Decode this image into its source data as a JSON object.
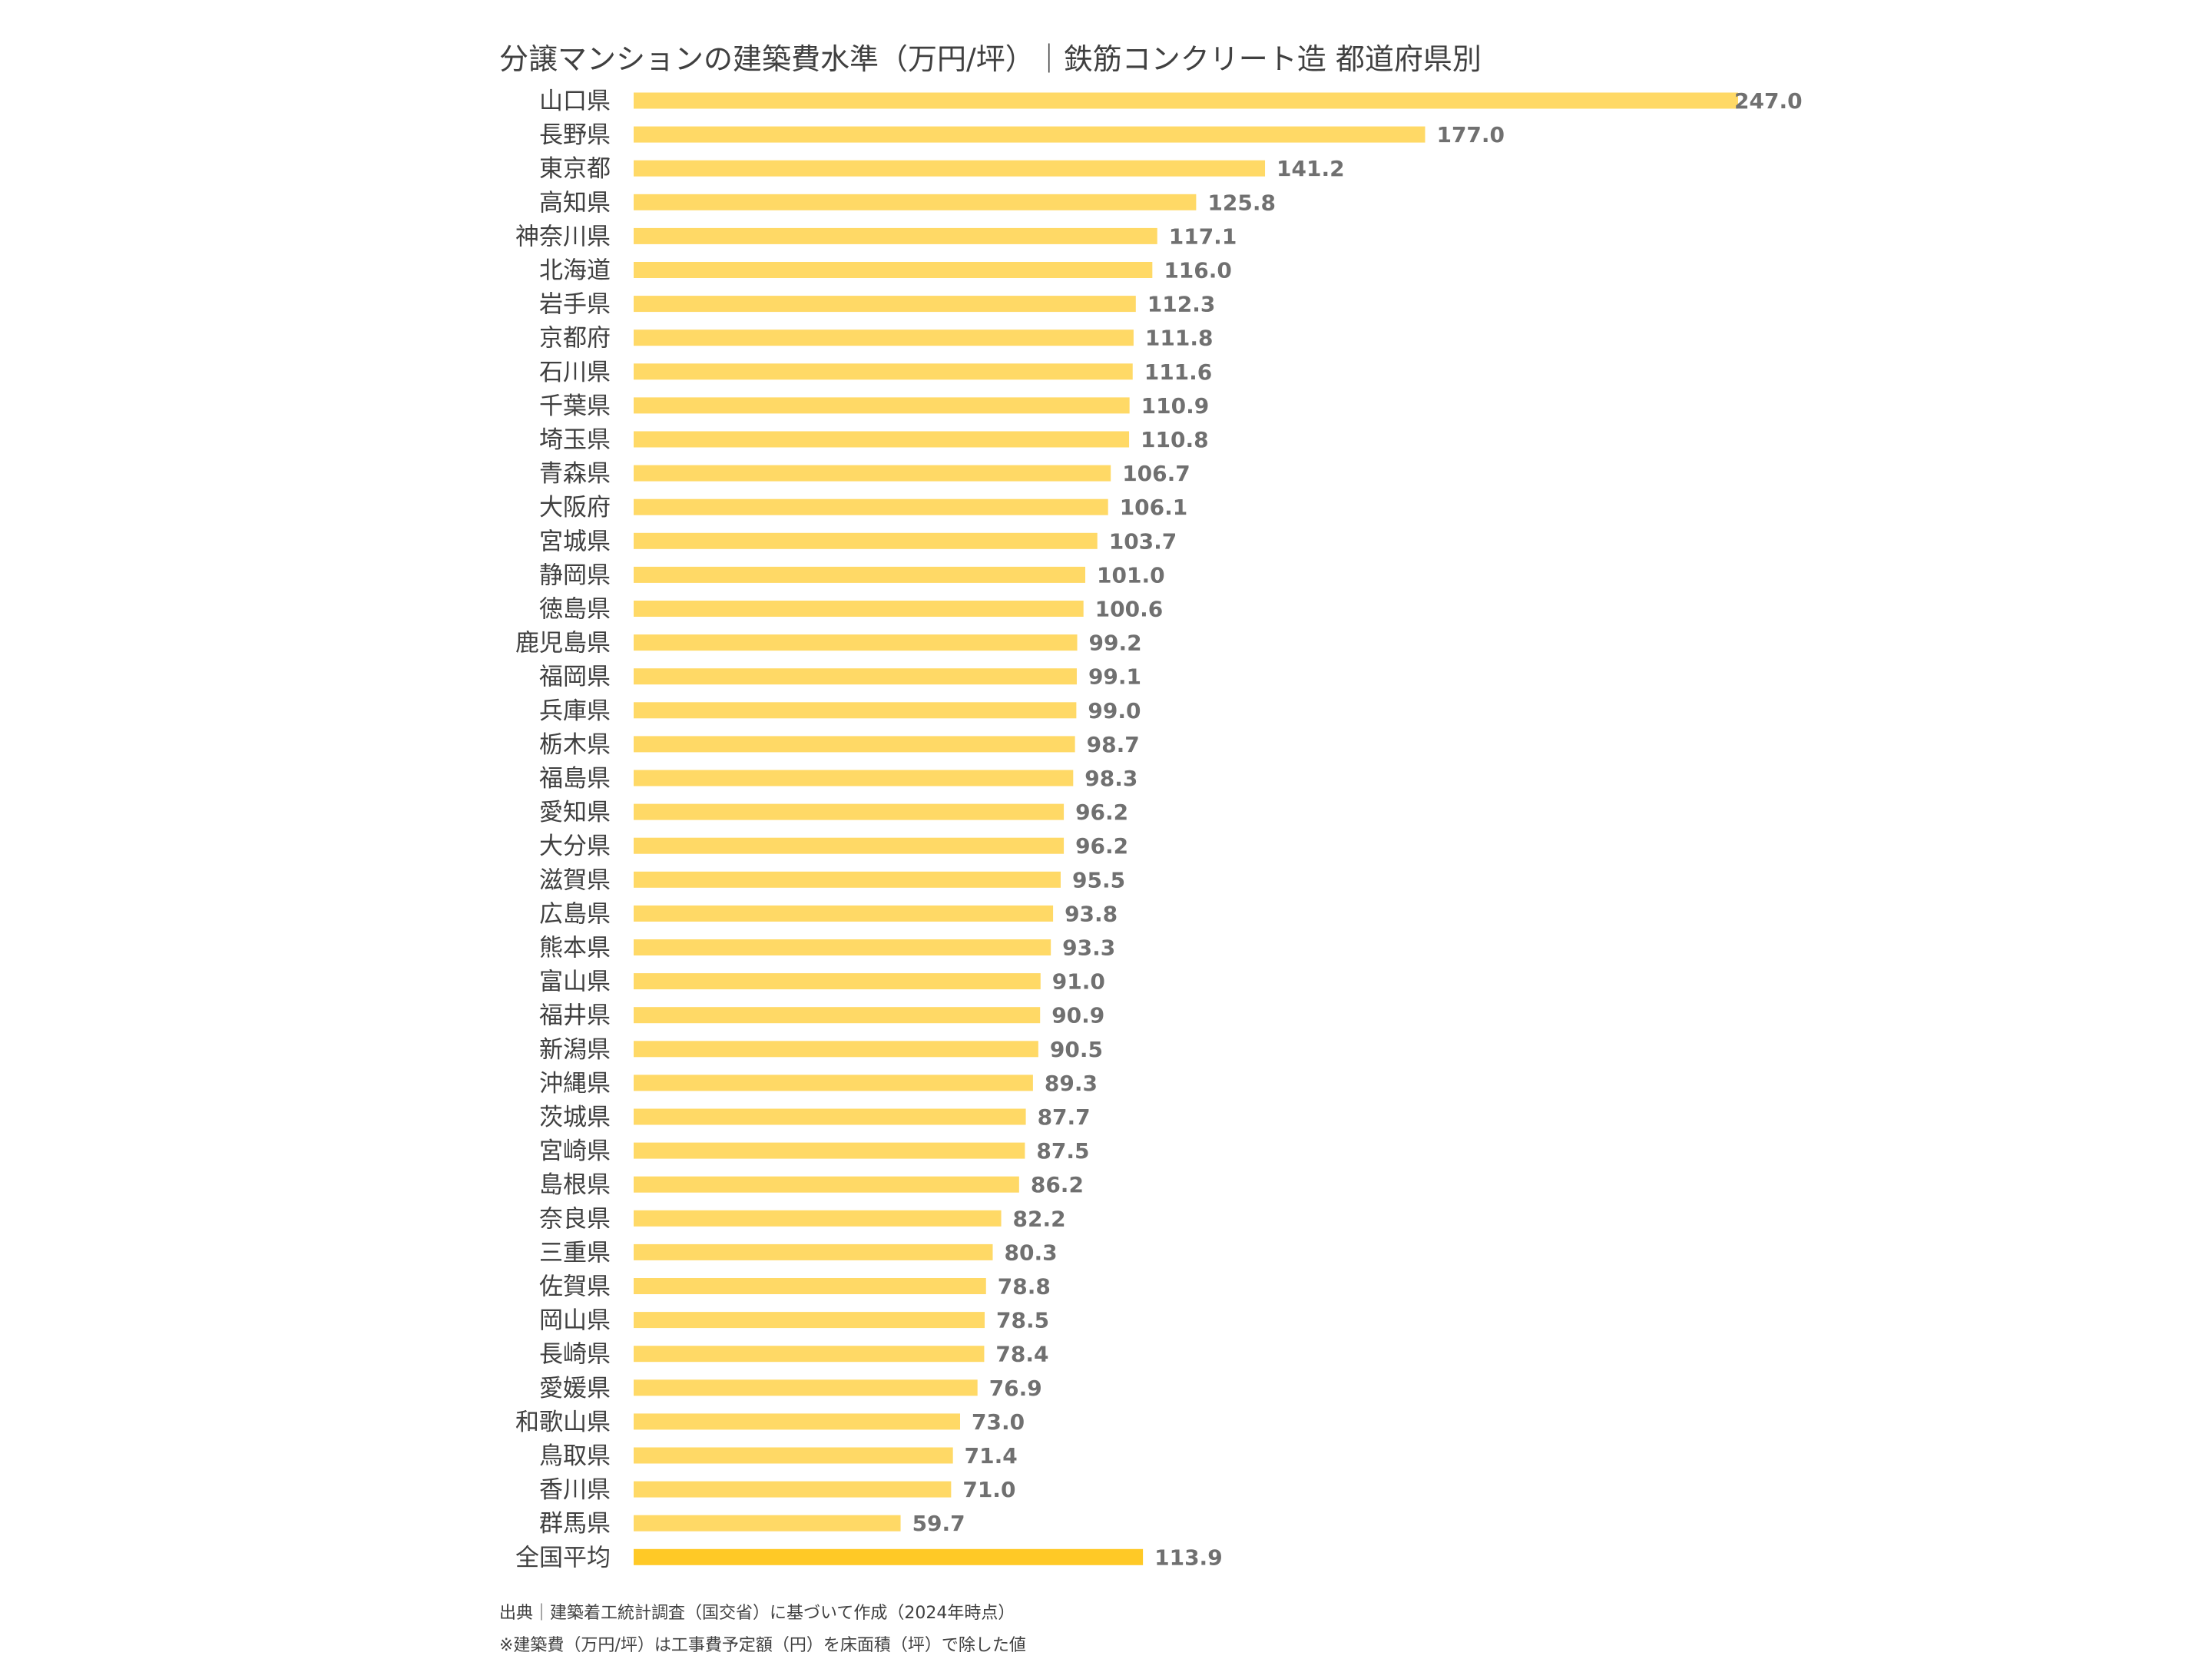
{
  "colors": {
    "bar": "#FFD966",
    "bar_highlight": "#FFC926",
    "value_text": "#707070",
    "label_text": "#404040"
  },
  "chart_data": {
    "type": "bar",
    "orientation": "horizontal",
    "title": "分譲マンションの建築費水準（万円/坪）｜鉄筋コンクリート造 都道府県別",
    "categories": [
      "山口県",
      "長野県",
      "東京都",
      "高知県",
      "神奈川県",
      "北海道",
      "岩手県",
      "京都府",
      "石川県",
      "千葉県",
      "埼玉県",
      "青森県",
      "大阪府",
      "宮城県",
      "静岡県",
      "徳島県",
      "鹿児島県",
      "福岡県",
      "兵庫県",
      "栃木県",
      "福島県",
      "愛知県",
      "大分県",
      "滋賀県",
      "広島県",
      "熊本県",
      "富山県",
      "福井県",
      "新潟県",
      "沖縄県",
      "茨城県",
      "宮崎県",
      "島根県",
      "奈良県",
      "三重県",
      "佐賀県",
      "岡山県",
      "長崎県",
      "愛媛県",
      "和歌山県",
      "鳥取県",
      "香川県",
      "群馬県",
      "全国平均"
    ],
    "values": [
      247.0,
      177.0,
      141.2,
      125.8,
      117.1,
      116.0,
      112.3,
      111.8,
      111.6,
      110.9,
      110.8,
      106.7,
      106.1,
      103.7,
      101.0,
      100.6,
      99.2,
      99.1,
      99.0,
      98.7,
      98.3,
      96.2,
      96.2,
      95.5,
      93.8,
      93.3,
      91.0,
      90.9,
      90.5,
      89.3,
      87.7,
      87.5,
      86.2,
      82.2,
      80.3,
      78.8,
      78.5,
      78.4,
      76.9,
      73.0,
      71.4,
      71.0,
      59.7,
      113.9
    ],
    "value_labels": [
      "247.0",
      "177.0",
      "141.2",
      "125.8",
      "117.1",
      "116.0",
      "112.3",
      "111.8",
      "111.6",
      "110.9",
      "110.8",
      "106.7",
      "106.1",
      "103.7",
      "101.0",
      "100.6",
      "99.2",
      "99.1",
      "99.0",
      "98.7",
      "98.3",
      "96.2",
      "96.2",
      "95.5",
      "93.8",
      "93.3",
      "91.0",
      "90.9",
      "90.5",
      "89.3",
      "87.7",
      "87.5",
      "86.2",
      "82.2",
      "80.3",
      "78.8",
      "78.5",
      "78.4",
      "76.9",
      "73.0",
      "71.4",
      "71.0",
      "59.7",
      "113.9"
    ],
    "highlight_category": "全国平均",
    "xlabel": "",
    "ylabel": "",
    "grid": false,
    "legend": "none"
  },
  "notes": {
    "source": "出典｜建築着工統計調査（国交省）に基づいて作成（2024年時点）",
    "method": "※建築費（万円/坪）は工事費予定額（円）を床面積（坪）で除した値"
  }
}
